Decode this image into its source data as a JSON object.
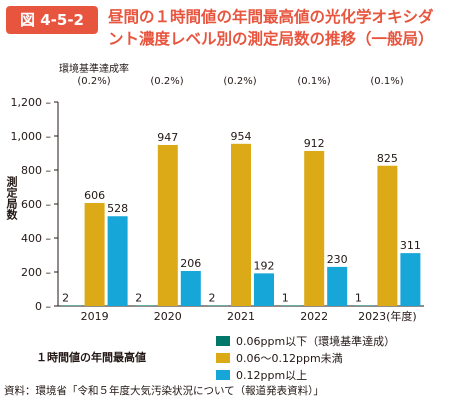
{
  "header": {
    "figure_number": "図 4-5-2",
    "title": "昼間の１時間値の年間最高値の光化学オキシダ\nント濃度レベル別の測定局数の推移（一般局）"
  },
  "compliance": {
    "label": "環境基準達成率",
    "rates": [
      "(0.2%)",
      "(0.2%)",
      "(0.2%)",
      "(0.1%)",
      "(0.1%)"
    ]
  },
  "axis": {
    "ylabel": "測定局数"
  },
  "colors": {
    "accent": "#e8553e",
    "low": "#00776b",
    "mid": "#dcaa17",
    "high": "#16a7d8"
  },
  "chart_data": {
    "type": "bar",
    "categories": [
      "2019",
      "2020",
      "2021",
      "2022",
      "2023(年度)"
    ],
    "series": [
      {
        "name": "0.06ppm以下（環境基準達成）",
        "values": [
          2,
          2,
          2,
          1,
          1
        ]
      },
      {
        "name": "0.06～0.12ppm未満",
        "values": [
          606,
          947,
          954,
          912,
          825
        ]
      },
      {
        "name": "0.12ppm以上",
        "values": [
          528,
          206,
          192,
          230,
          311
        ]
      }
    ],
    "ylabel": "測定局数",
    "ylim": [
      0,
      1200
    ],
    "yticks": [
      "0",
      "200",
      "400",
      "600",
      "800",
      "1,000",
      "1,200"
    ],
    "grid": false,
    "legend_position": "bottom-right"
  },
  "legend": {
    "title": "１時間値の年間最高値"
  },
  "footer": {
    "source": "資料：環境省「令和５年度大気汚染状況について（報道発表資料）」"
  }
}
